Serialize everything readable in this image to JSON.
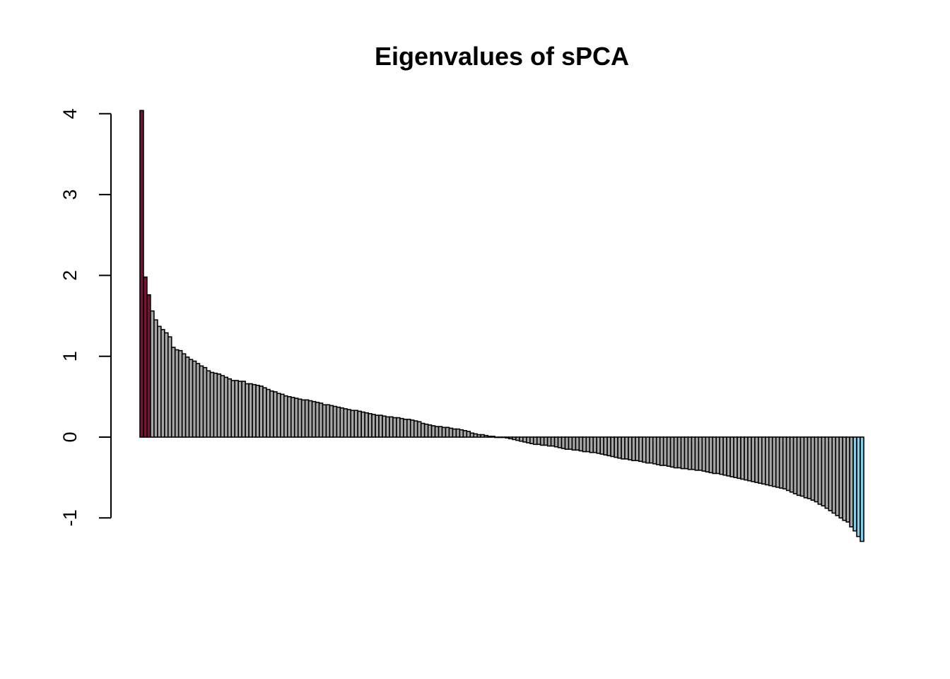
{
  "chart_data": {
    "type": "bar",
    "title": "Eigenvalues of sPCA",
    "xlabel": "",
    "ylabel": "",
    "ylim": [
      -1,
      4
    ],
    "yticks": [
      -1,
      0,
      1,
      2,
      3,
      4
    ],
    "grid": false,
    "legend": "none",
    "colors": {
      "positive_highlight": "#7a1038",
      "negative_highlight": "#87ceeb",
      "default": "#a6a6a6",
      "outline": "#000000"
    },
    "highlight_positive_count": 3,
    "highlight_negative_count": 3,
    "values": [
      4.04,
      1.98,
      1.76,
      1.56,
      1.45,
      1.37,
      1.33,
      1.29,
      1.24,
      1.11,
      1.08,
      1.07,
      1.03,
      0.99,
      0.96,
      0.94,
      0.91,
      0.88,
      0.86,
      0.82,
      0.8,
      0.79,
      0.78,
      0.76,
      0.74,
      0.72,
      0.7,
      0.7,
      0.69,
      0.69,
      0.66,
      0.66,
      0.65,
      0.64,
      0.63,
      0.61,
      0.59,
      0.57,
      0.56,
      0.54,
      0.53,
      0.51,
      0.5,
      0.49,
      0.48,
      0.47,
      0.46,
      0.46,
      0.45,
      0.44,
      0.43,
      0.42,
      0.4,
      0.4,
      0.39,
      0.38,
      0.37,
      0.36,
      0.35,
      0.34,
      0.33,
      0.33,
      0.32,
      0.31,
      0.3,
      0.29,
      0.28,
      0.27,
      0.27,
      0.26,
      0.25,
      0.25,
      0.24,
      0.24,
      0.23,
      0.22,
      0.22,
      0.21,
      0.2,
      0.19,
      0.17,
      0.16,
      0.15,
      0.14,
      0.13,
      0.13,
      0.12,
      0.12,
      0.11,
      0.1,
      0.1,
      0.09,
      0.08,
      0.07,
      0.05,
      0.04,
      0.03,
      0.03,
      0.02,
      0.01,
      0.01,
      0.0,
      0.0,
      0.0,
      -0.01,
      -0.02,
      -0.03,
      -0.04,
      -0.05,
      -0.06,
      -0.07,
      -0.08,
      -0.09,
      -0.09,
      -0.1,
      -0.1,
      -0.11,
      -0.11,
      -0.12,
      -0.13,
      -0.14,
      -0.15,
      -0.15,
      -0.16,
      -0.16,
      -0.17,
      -0.18,
      -0.18,
      -0.19,
      -0.19,
      -0.2,
      -0.21,
      -0.22,
      -0.23,
      -0.24,
      -0.25,
      -0.26,
      -0.27,
      -0.27,
      -0.28,
      -0.29,
      -0.29,
      -0.3,
      -0.31,
      -0.32,
      -0.32,
      -0.33,
      -0.34,
      -0.35,
      -0.35,
      -0.36,
      -0.37,
      -0.38,
      -0.38,
      -0.39,
      -0.39,
      -0.4,
      -0.4,
      -0.41,
      -0.41,
      -0.42,
      -0.43,
      -0.44,
      -0.45,
      -0.45,
      -0.46,
      -0.47,
      -0.48,
      -0.49,
      -0.5,
      -0.51,
      -0.52,
      -0.53,
      -0.54,
      -0.55,
      -0.56,
      -0.57,
      -0.58,
      -0.59,
      -0.6,
      -0.61,
      -0.62,
      -0.63,
      -0.64,
      -0.66,
      -0.68,
      -0.7,
      -0.72,
      -0.73,
      -0.75,
      -0.76,
      -0.78,
      -0.8,
      -0.83,
      -0.85,
      -0.88,
      -0.91,
      -0.94,
      -0.97,
      -1.0,
      -1.03,
      -1.05,
      -1.11,
      -1.16,
      -1.23,
      -1.29
    ]
  }
}
